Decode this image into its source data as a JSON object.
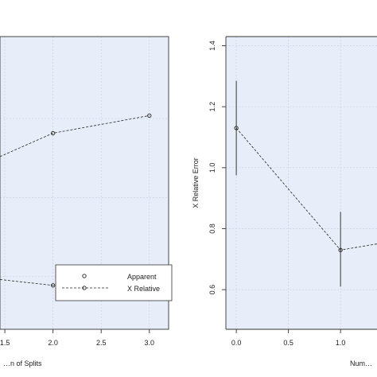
{
  "colors": {
    "panel_bg": "#e8eef9",
    "grid": "#c9d2e3",
    "line": "#222222",
    "axis": "#333333"
  },
  "chart_data": [
    {
      "type": "line",
      "xlabel": "…n of Splits",
      "ylabel": "",
      "xlim": [
        1.45,
        3.2
      ],
      "ylim": [
        0.0,
        1.0
      ],
      "x_ticks": [
        1.5,
        2.0,
        2.5,
        3.0
      ],
      "x_tick_labels": [
        "1.5",
        "2.0",
        "2.5",
        "3.0"
      ],
      "grid": true,
      "legend": {
        "placement": "bottom-right",
        "entries": [
          "Apparent",
          "X Relative"
        ]
      },
      "series": [
        {
          "name": "Apparent",
          "x": [
            1.45,
            2.0,
            3.0
          ],
          "y": [
            0.59,
            0.67,
            0.73
          ]
        },
        {
          "name": "X Relative",
          "x": [
            1.45,
            2.0,
            2.5,
            3.0
          ],
          "y": [
            0.17,
            0.15,
            0.15,
            0.16
          ]
        }
      ]
    },
    {
      "type": "line",
      "xlabel": "Num…",
      "ylabel": "X Relative Error",
      "xlim": [
        -0.1,
        1.35
      ],
      "ylim": [
        0.47,
        1.43
      ],
      "x_ticks": [
        0.0,
        0.5,
        1.0
      ],
      "x_tick_labels": [
        "0.0",
        "0.5",
        "1.0"
      ],
      "y_ticks": [
        0.6,
        0.8,
        1.0,
        1.2,
        1.4
      ],
      "y_tick_labels": [
        "0.6",
        "0.8",
        "1.0",
        "1.2",
        "1.4"
      ],
      "grid": true,
      "series": [
        {
          "name": "X Relative",
          "x": [
            0.0,
            1.0,
            1.35
          ],
          "y": [
            1.13,
            0.73,
            0.75
          ],
          "err_low": [
            0.975,
            0.61,
            null
          ],
          "err_high": [
            1.285,
            0.855,
            null
          ]
        }
      ]
    }
  ]
}
